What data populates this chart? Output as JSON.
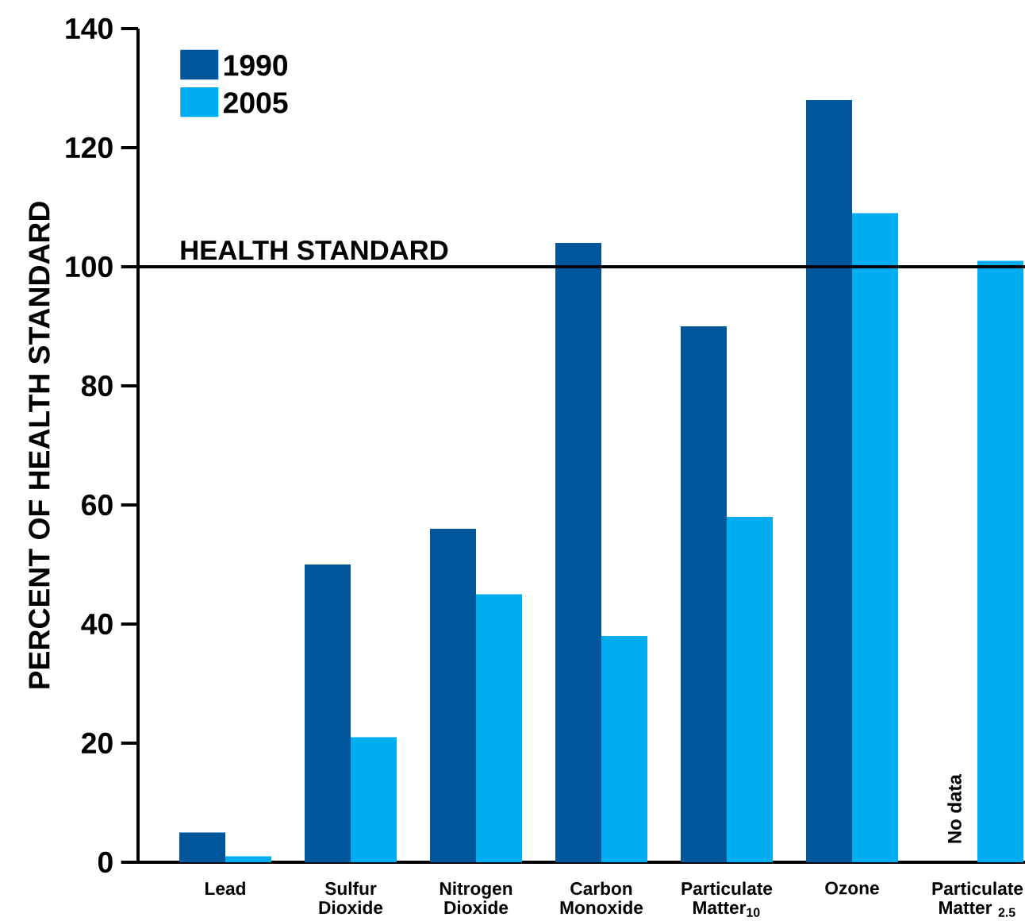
{
  "chart_data": {
    "type": "bar",
    "ylabel": "PERCENT OF HEALTH STANDARD",
    "categories": [
      "Lead",
      "Sulfur Dioxide",
      "Nitrogen Dioxide",
      "Carbon Monoxide",
      "Particulate Matter$_{10}$",
      "Ozone",
      "Particulate Matter $_{2.5}$"
    ],
    "series": [
      {
        "name": "1990",
        "color": "#00569a",
        "values": [
          5,
          50,
          56,
          104,
          90,
          128,
          null
        ]
      },
      {
        "name": "2005",
        "color": "#00aeef",
        "values": [
          1,
          21,
          45,
          38,
          58,
          109,
          101
        ]
      }
    ],
    "ylim": [
      0,
      140
    ],
    "yticks": [
      0,
      20,
      40,
      60,
      80,
      100,
      120,
      140
    ],
    "ref_lines": [
      {
        "axis": "y",
        "value": 100,
        "label": "HEALTH STANDARD",
        "color": "#000000"
      }
    ],
    "annotations": [
      "No data"
    ],
    "legend": "top left",
    "grid": false
  }
}
